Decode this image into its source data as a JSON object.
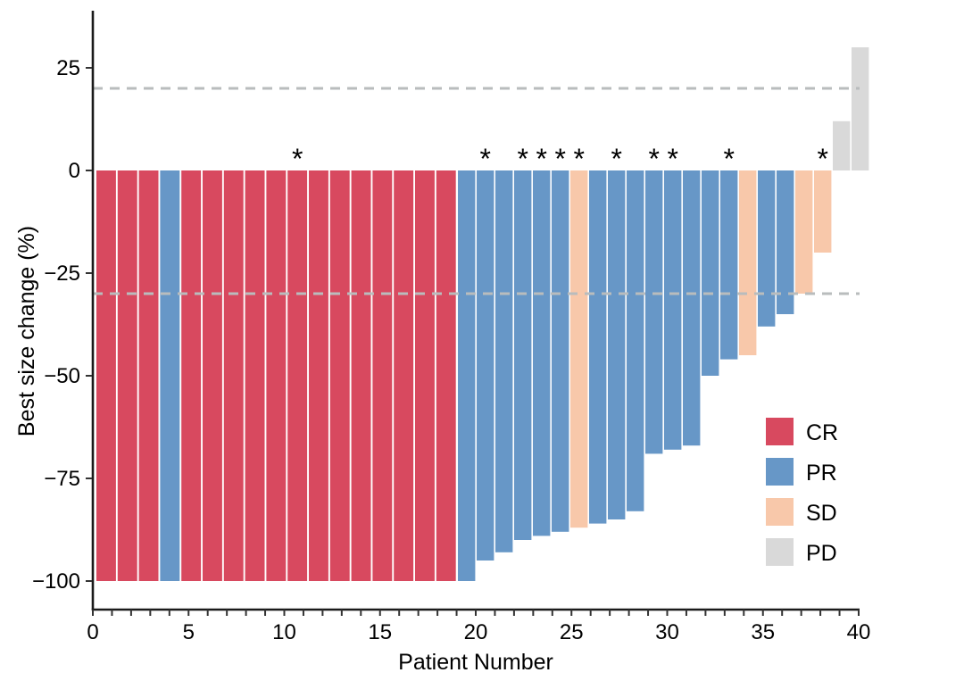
{
  "chart_data": {
    "type": "bar",
    "subtype": "waterfall",
    "title": "",
    "xlabel": "Patient Number",
    "ylabel": "Best size change (%)",
    "xlim": [
      0,
      40
    ],
    "ylim": [
      -100,
      35
    ],
    "x_tick_labels": [
      "0",
      "5",
      "10",
      "15",
      "20",
      "25",
      "30",
      "35",
      "40"
    ],
    "x_tick_values_labeled": [
      0,
      5,
      10,
      15,
      20,
      25,
      30,
      35,
      40
    ],
    "x_minor_tick_step": 1,
    "y_tick_labels": [
      "25",
      "0",
      "−25",
      "−50",
      "−75",
      "−100"
    ],
    "y_tick_values": [
      25,
      0,
      -25,
      -50,
      -75,
      -100
    ],
    "grid": false,
    "reference_lines": [
      {
        "value": 20,
        "style": "dashed",
        "color": "#b9bcbd"
      },
      {
        "value": -30,
        "style": "dashed",
        "color": "#b9bcbd"
      }
    ],
    "marker_glyph": "*",
    "legend": {
      "position": "right-lower",
      "entries": [
        {
          "label": "CR",
          "color": "#d8495f"
        },
        {
          "label": "PR",
          "color": "#6797c7"
        },
        {
          "label": "SD",
          "color": "#f8c8aa"
        },
        {
          "label": "PD",
          "color": "#d9d9d9"
        }
      ]
    },
    "series": [
      {
        "name": "Best size change (%)",
        "points": [
          {
            "n": 1,
            "value": -100,
            "response": "CR",
            "marked": false
          },
          {
            "n": 2,
            "value": -100,
            "response": "CR",
            "marked": false
          },
          {
            "n": 3,
            "value": -100,
            "response": "CR",
            "marked": false
          },
          {
            "n": 4,
            "value": -100,
            "response": "PR",
            "marked": false
          },
          {
            "n": 5,
            "value": -100,
            "response": "CR",
            "marked": false
          },
          {
            "n": 6,
            "value": -100,
            "response": "CR",
            "marked": false
          },
          {
            "n": 7,
            "value": -100,
            "response": "CR",
            "marked": false
          },
          {
            "n": 8,
            "value": -100,
            "response": "CR",
            "marked": false
          },
          {
            "n": 9,
            "value": -100,
            "response": "CR",
            "marked": false
          },
          {
            "n": 10,
            "value": -100,
            "response": "CR",
            "marked": true
          },
          {
            "n": 11,
            "value": -100,
            "response": "CR",
            "marked": false
          },
          {
            "n": 12,
            "value": -100,
            "response": "CR",
            "marked": false
          },
          {
            "n": 13,
            "value": -100,
            "response": "CR",
            "marked": false
          },
          {
            "n": 14,
            "value": -100,
            "response": "CR",
            "marked": false
          },
          {
            "n": 15,
            "value": -100,
            "response": "CR",
            "marked": false
          },
          {
            "n": 16,
            "value": -100,
            "response": "CR",
            "marked": false
          },
          {
            "n": 17,
            "value": -100,
            "response": "CR",
            "marked": false
          },
          {
            "n": 18,
            "value": -100,
            "response": "PR",
            "marked": false
          },
          {
            "n": 19,
            "value": -95,
            "response": "PR",
            "marked": true
          },
          {
            "n": 20,
            "value": -93,
            "response": "PR",
            "marked": false
          },
          {
            "n": 21,
            "value": -90,
            "response": "PR",
            "marked": true
          },
          {
            "n": 22,
            "value": -89,
            "response": "PR",
            "marked": true
          },
          {
            "n": 23,
            "value": -88,
            "response": "PR",
            "marked": true
          },
          {
            "n": 24,
            "value": -87,
            "response": "SD",
            "marked": true
          },
          {
            "n": 25,
            "value": -86,
            "response": "PR",
            "marked": false
          },
          {
            "n": 26,
            "value": -85,
            "response": "PR",
            "marked": true
          },
          {
            "n": 27,
            "value": -83,
            "response": "PR",
            "marked": false
          },
          {
            "n": 28,
            "value": -69,
            "response": "PR",
            "marked": true
          },
          {
            "n": 29,
            "value": -68,
            "response": "PR",
            "marked": true
          },
          {
            "n": 30,
            "value": -67,
            "response": "PR",
            "marked": false
          },
          {
            "n": 31,
            "value": -50,
            "response": "PR",
            "marked": false
          },
          {
            "n": 32,
            "value": -46,
            "response": "PR",
            "marked": true
          },
          {
            "n": 33,
            "value": -45,
            "response": "SD",
            "marked": false
          },
          {
            "n": 34,
            "value": -38,
            "response": "PR",
            "marked": false
          },
          {
            "n": 35,
            "value": -35,
            "response": "PR",
            "marked": false
          },
          {
            "n": 36,
            "value": -30,
            "response": "SD",
            "marked": false
          },
          {
            "n": 37,
            "value": -20,
            "response": "SD",
            "marked": true
          },
          {
            "n": 38,
            "value": 12,
            "response": "PD",
            "marked": false
          },
          {
            "n": 39,
            "value": 30,
            "response": "PD",
            "marked": false
          }
        ]
      }
    ],
    "colors": {
      "CR": "#d8495f",
      "PR": "#6797c7",
      "SD": "#f8c8aa",
      "PD": "#d9d9d9",
      "axis": "#1a1a1a",
      "tick": "#333333",
      "dashed_line": "#b9bcbd",
      "background": "#ffffff"
    }
  }
}
